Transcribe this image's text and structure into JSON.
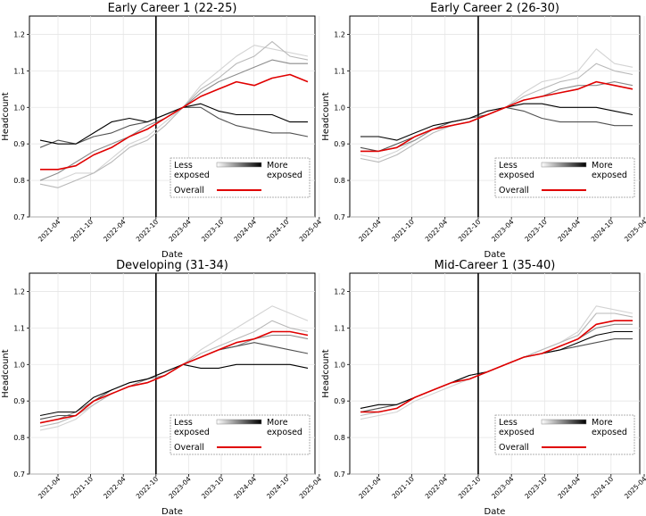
{
  "chart_data": [
    {
      "type": "line",
      "title": "Early Career 1 (22-25)",
      "xlabel": "Date",
      "ylabel": "Headcount",
      "ylim": [
        0.7,
        1.25
      ],
      "yticks": [
        "0.7",
        "0.8",
        "0.9",
        "1.0",
        "1.1",
        "1.2"
      ],
      "xticks": [
        "2021-04",
        "2021-10",
        "2022-04",
        "2022-10",
        "2023-04",
        "2023-10",
        "2024-04",
        "2024-10",
        "2025-04"
      ],
      "grid": true,
      "event_line_x": "2022-10",
      "legend": {
        "less_label": "Less\nexposed",
        "more_label": "More\nexposed",
        "overall_label": "Overall",
        "position": "lower-right"
      },
      "overall_color": "#e00000",
      "series": [
        {
          "name": "exposure-group-1",
          "color": "#d3d3d3",
          "values": [
            0.8,
            0.8,
            0.82,
            0.82,
            0.86,
            0.9,
            0.92,
            0.96,
            1.0,
            1.06,
            1.1,
            1.14,
            1.17,
            1.16,
            1.15,
            1.14
          ]
        },
        {
          "name": "exposure-group-2",
          "color": "#b8b8b8",
          "values": [
            0.79,
            0.78,
            0.8,
            0.82,
            0.85,
            0.89,
            0.91,
            0.95,
            1.0,
            1.05,
            1.08,
            1.12,
            1.14,
            1.18,
            1.14,
            1.13
          ]
        },
        {
          "name": "exposure-group-3",
          "color": "#8c8c8c",
          "values": [
            0.8,
            0.82,
            0.85,
            0.88,
            0.9,
            0.92,
            0.95,
            0.97,
            1.0,
            1.04,
            1.07,
            1.09,
            1.11,
            1.13,
            1.12,
            1.12
          ]
        },
        {
          "name": "exposure-group-4",
          "color": "#505050",
          "values": [
            0.89,
            0.91,
            0.9,
            0.92,
            0.93,
            0.95,
            0.96,
            0.98,
            1.0,
            1.0,
            0.97,
            0.95,
            0.94,
            0.93,
            0.93,
            0.92
          ]
        },
        {
          "name": "exposure-group-5",
          "color": "#000000",
          "values": [
            0.91,
            0.9,
            0.9,
            0.93,
            0.96,
            0.97,
            0.96,
            0.98,
            1.0,
            1.01,
            0.99,
            0.98,
            0.98,
            0.98,
            0.96,
            0.96
          ]
        },
        {
          "name": "Overall",
          "color": "#e00000",
          "values": [
            0.83,
            0.83,
            0.84,
            0.87,
            0.89,
            0.92,
            0.94,
            0.97,
            1.0,
            1.03,
            1.05,
            1.07,
            1.06,
            1.08,
            1.09,
            1.07
          ]
        }
      ]
    },
    {
      "type": "line",
      "title": "Early Career 2 (26-30)",
      "xlabel": "Date",
      "ylabel": "Headcount",
      "ylim": [
        0.7,
        1.25
      ],
      "yticks": [
        "0.7",
        "0.8",
        "0.9",
        "1.0",
        "1.1",
        "1.2"
      ],
      "xticks": [
        "2021-04",
        "2021-10",
        "2022-04",
        "2022-10",
        "2023-04",
        "2023-10",
        "2024-04",
        "2024-10",
        "2025-04"
      ],
      "grid": true,
      "event_line_x": "2022-10",
      "legend": {
        "less_label": "Less\nexposed",
        "more_label": "More\nexposed",
        "overall_label": "Overall",
        "position": "lower-right"
      },
      "overall_color": "#e00000",
      "series": [
        {
          "name": "exposure-group-1",
          "color": "#d3d3d3",
          "values": [
            0.87,
            0.86,
            0.88,
            0.91,
            0.94,
            0.95,
            0.96,
            0.98,
            1.0,
            1.04,
            1.07,
            1.08,
            1.1,
            1.16,
            1.12,
            1.11
          ]
        },
        {
          "name": "exposure-group-2",
          "color": "#b8b8b8",
          "values": [
            0.86,
            0.85,
            0.87,
            0.9,
            0.93,
            0.95,
            0.96,
            0.98,
            1.0,
            1.03,
            1.05,
            1.07,
            1.08,
            1.12,
            1.1,
            1.09
          ]
        },
        {
          "name": "exposure-group-3",
          "color": "#8c8c8c",
          "values": [
            0.88,
            0.88,
            0.89,
            0.91,
            0.94,
            0.95,
            0.96,
            0.98,
            1.0,
            1.02,
            1.03,
            1.05,
            1.06,
            1.06,
            1.07,
            1.06
          ]
        },
        {
          "name": "exposure-group-4",
          "color": "#505050",
          "values": [
            0.89,
            0.88,
            0.9,
            0.92,
            0.94,
            0.96,
            0.97,
            0.98,
            1.0,
            0.99,
            0.97,
            0.96,
            0.96,
            0.96,
            0.95,
            0.95
          ]
        },
        {
          "name": "exposure-group-5",
          "color": "#000000",
          "values": [
            0.92,
            0.92,
            0.91,
            0.93,
            0.95,
            0.96,
            0.97,
            0.99,
            1.0,
            1.01,
            1.01,
            1.0,
            1.0,
            1.0,
            0.99,
            0.98
          ]
        },
        {
          "name": "Overall",
          "color": "#e00000",
          "values": [
            0.88,
            0.88,
            0.89,
            0.92,
            0.94,
            0.95,
            0.96,
            0.98,
            1.0,
            1.02,
            1.03,
            1.04,
            1.05,
            1.07,
            1.06,
            1.05
          ]
        }
      ]
    },
    {
      "type": "line",
      "title": "Developing (31-34)",
      "xlabel": "Date",
      "ylabel": "Headcount",
      "ylim": [
        0.7,
        1.25
      ],
      "yticks": [
        "0.7",
        "0.8",
        "0.9",
        "1.0",
        "1.1",
        "1.2"
      ],
      "xticks": [
        "2021-04",
        "2021-10",
        "2022-04",
        "2022-10",
        "2023-04",
        "2023-10",
        "2024-04",
        "2024-10",
        "2025-04"
      ],
      "grid": true,
      "event_line_x": "2022-10",
      "legend": {
        "less_label": "Less\nexposed",
        "more_label": "More\nexposed",
        "overall_label": "Overall",
        "position": "lower-right"
      },
      "overall_color": "#e00000",
      "series": [
        {
          "name": "exposure-group-1",
          "color": "#d3d3d3",
          "values": [
            0.82,
            0.83,
            0.85,
            0.89,
            0.92,
            0.94,
            0.95,
            0.97,
            1.0,
            1.04,
            1.07,
            1.1,
            1.13,
            1.16,
            1.14,
            1.12
          ]
        },
        {
          "name": "exposure-group-2",
          "color": "#b8b8b8",
          "values": [
            0.83,
            0.84,
            0.86,
            0.89,
            0.92,
            0.94,
            0.95,
            0.97,
            1.0,
            1.03,
            1.05,
            1.07,
            1.09,
            1.12,
            1.1,
            1.09
          ]
        },
        {
          "name": "exposure-group-3",
          "color": "#8c8c8c",
          "values": [
            0.84,
            0.85,
            0.87,
            0.9,
            0.92,
            0.94,
            0.96,
            0.97,
            1.0,
            1.02,
            1.04,
            1.05,
            1.07,
            1.08,
            1.08,
            1.07
          ]
        },
        {
          "name": "exposure-group-4",
          "color": "#505050",
          "values": [
            0.85,
            0.86,
            0.86,
            0.9,
            0.93,
            0.95,
            0.96,
            0.98,
            1.0,
            1.02,
            1.04,
            1.05,
            1.06,
            1.05,
            1.04,
            1.03
          ]
        },
        {
          "name": "exposure-group-5",
          "color": "#000000",
          "values": [
            0.86,
            0.87,
            0.87,
            0.91,
            0.93,
            0.95,
            0.96,
            0.98,
            1.0,
            0.99,
            0.99,
            1.0,
            1.0,
            1.0,
            1.0,
            0.99
          ]
        },
        {
          "name": "Overall",
          "color": "#e00000",
          "values": [
            0.84,
            0.85,
            0.86,
            0.9,
            0.92,
            0.94,
            0.95,
            0.97,
            1.0,
            1.02,
            1.04,
            1.06,
            1.07,
            1.09,
            1.09,
            1.08
          ]
        }
      ]
    },
    {
      "type": "line",
      "title": "Mid-Career 1 (35-40)",
      "xlabel": "Date",
      "ylabel": "Headcount",
      "ylim": [
        0.7,
        1.25
      ],
      "yticks": [
        "0.7",
        "0.8",
        "0.9",
        "1.0",
        "1.1",
        "1.2"
      ],
      "xticks": [
        "2021-04",
        "2021-10",
        "2022-04",
        "2022-10",
        "2023-04",
        "2023-10",
        "2024-04",
        "2024-10",
        "2025-04"
      ],
      "grid": true,
      "event_line_x": "2022-10",
      "legend": {
        "less_label": "Less\nexposed",
        "more_label": "More\nexposed",
        "overall_label": "Overall",
        "position": "lower-right"
      },
      "overall_color": "#e00000",
      "series": [
        {
          "name": "exposure-group-1",
          "color": "#d3d3d3",
          "values": [
            0.85,
            0.86,
            0.87,
            0.9,
            0.92,
            0.94,
            0.96,
            0.98,
            1.0,
            1.02,
            1.04,
            1.06,
            1.09,
            1.16,
            1.15,
            1.14
          ]
        },
        {
          "name": "exposure-group-2",
          "color": "#b8b8b8",
          "values": [
            0.86,
            0.87,
            0.88,
            0.91,
            0.93,
            0.95,
            0.96,
            0.98,
            1.0,
            1.02,
            1.04,
            1.06,
            1.08,
            1.14,
            1.14,
            1.13
          ]
        },
        {
          "name": "exposure-group-3",
          "color": "#8c8c8c",
          "values": [
            0.87,
            0.87,
            0.88,
            0.91,
            0.93,
            0.95,
            0.96,
            0.98,
            1.0,
            1.02,
            1.03,
            1.05,
            1.07,
            1.1,
            1.11,
            1.11
          ]
        },
        {
          "name": "exposure-group-4",
          "color": "#505050",
          "values": [
            0.87,
            0.88,
            0.89,
            0.91,
            0.93,
            0.95,
            0.97,
            0.98,
            1.0,
            1.02,
            1.03,
            1.04,
            1.05,
            1.06,
            1.07,
            1.07
          ]
        },
        {
          "name": "exposure-group-5",
          "color": "#000000",
          "values": [
            0.88,
            0.89,
            0.89,
            0.91,
            0.93,
            0.95,
            0.97,
            0.98,
            1.0,
            1.02,
            1.03,
            1.04,
            1.06,
            1.08,
            1.09,
            1.09
          ]
        },
        {
          "name": "Overall",
          "color": "#e00000",
          "values": [
            0.87,
            0.87,
            0.88,
            0.91,
            0.93,
            0.95,
            0.96,
            0.98,
            1.0,
            1.02,
            1.03,
            1.05,
            1.07,
            1.11,
            1.12,
            1.12
          ]
        }
      ]
    }
  ]
}
